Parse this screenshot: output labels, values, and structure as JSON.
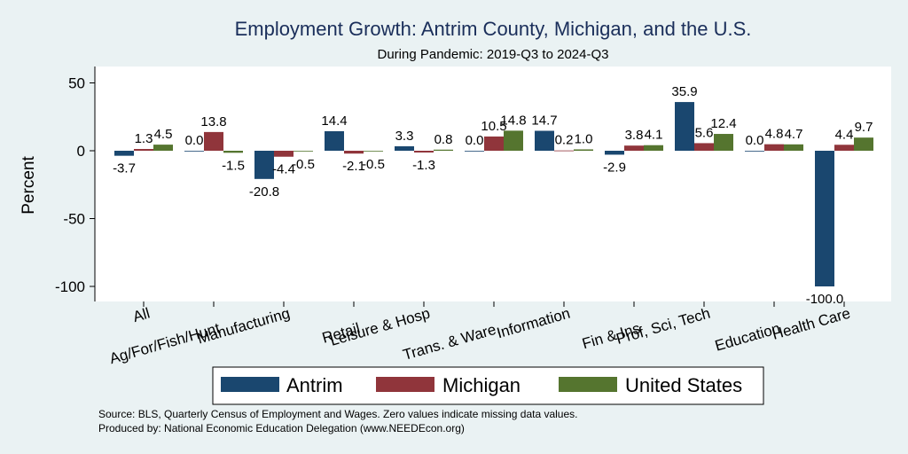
{
  "chart_data": {
    "type": "bar",
    "title": "Employment Growth: Antrim County, Michigan, and the U.S.",
    "subtitle": "During Pandemic: 2019-Q3 to 2024-Q3",
    "ylabel": "Percent",
    "xlabel": "",
    "ylim": [
      -105,
      57
    ],
    "yticks": [
      50,
      0,
      -50,
      -100
    ],
    "grid": false,
    "legend_position": "bottom",
    "categories": [
      "All",
      "Ag/For/Fish/Hunt",
      "Manufacturing",
      "Retail",
      "Leisure & Hosp",
      "Trans. & Ware.",
      "Information",
      "Fin & Ins",
      "Prof, Sci, Tech",
      "Education",
      "Health Care"
    ],
    "series": [
      {
        "name": "Antrim",
        "color": "#1a476f",
        "values": [
          -3.7,
          0.0,
          -20.8,
          14.4,
          3.3,
          0.0,
          14.7,
          -2.9,
          35.9,
          0.0,
          -100.0
        ],
        "labels": [
          "-3.7",
          "0.0",
          "-20.8",
          "14.4",
          "3.3",
          "0.0",
          "14.7",
          "-2.9",
          "35.9",
          "0.0",
          "-100.0"
        ]
      },
      {
        "name": "Michigan",
        "color": "#90353b",
        "values": [
          1.3,
          13.8,
          -4.4,
          -2.1,
          -1.3,
          10.5,
          0.2,
          3.8,
          5.6,
          4.8,
          4.4
        ],
        "labels": [
          "1.3",
          "13.8",
          "-4.4",
          "-2.1",
          "-1.3",
          "10.5",
          "0.2",
          "3.8",
          "5.6",
          "4.8",
          "4.4"
        ]
      },
      {
        "name": "United States",
        "color": "#55752f",
        "values": [
          4.5,
          -1.5,
          -0.5,
          -0.5,
          0.8,
          14.8,
          1.0,
          4.1,
          12.4,
          4.7,
          9.7
        ],
        "labels": [
          "4.5",
          "-1.5",
          "-0.5",
          "-0.5",
          "0.8",
          "14.8",
          "1.0",
          "4.1",
          "12.4",
          "4.7",
          "9.7"
        ]
      }
    ]
  },
  "notes": {
    "source": "Source: BLS, Quarterly Census of Employment and Wages. Zero values indicate missing data values.",
    "produced_by": "Produced by: National Economic Education Delegation (www.NEEDEcon.org)"
  }
}
